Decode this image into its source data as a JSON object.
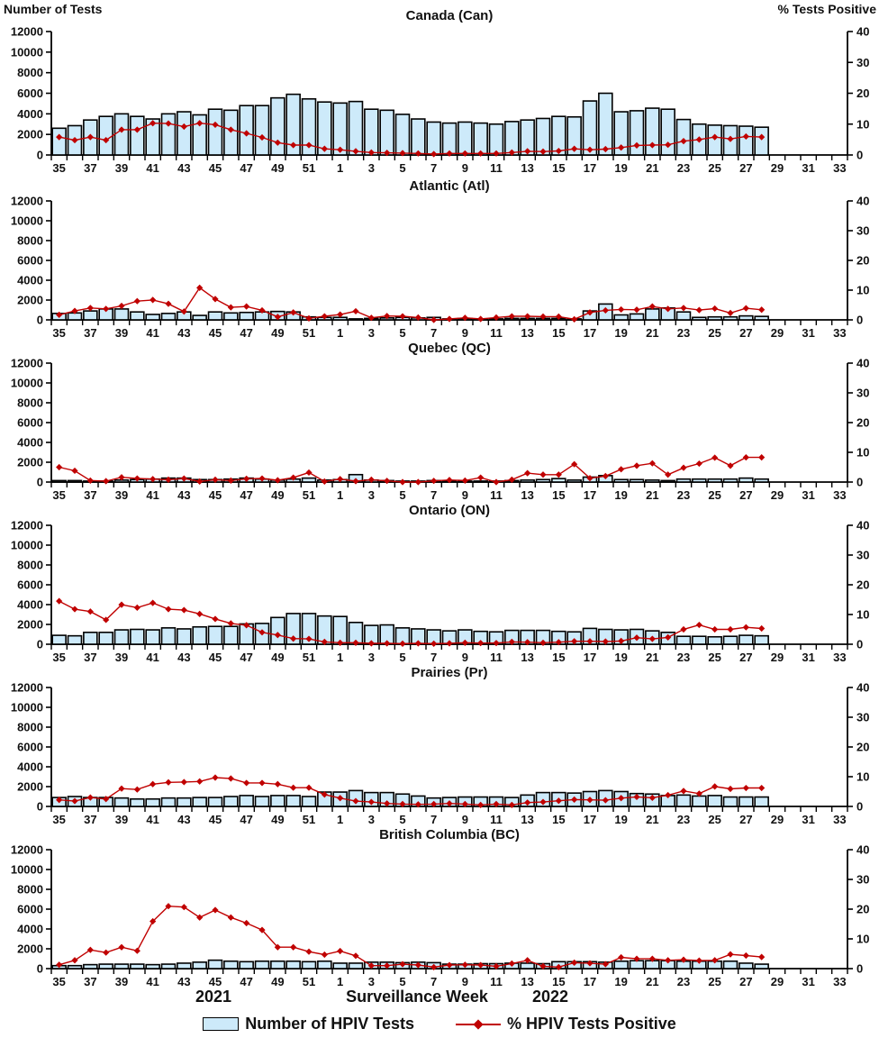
{
  "chart_data": {
    "type": "bar",
    "subtype": "combo-bar-line-multipanel",
    "xlabel": "Surveillance Week",
    "years": {
      "left": "2021",
      "right": "2022"
    },
    "legend": {
      "bars": "Number of HPIV Tests",
      "line": "% HPIV Tests Positive"
    },
    "left_axis": {
      "label": "Number of Tests",
      "min": 0,
      "max": 12000,
      "step": 2000
    },
    "right_axis": {
      "label": "% Tests Positive",
      "min": 0,
      "max": 40,
      "step": 10
    },
    "categories": [
      35,
      36,
      37,
      38,
      39,
      40,
      41,
      42,
      43,
      44,
      45,
      46,
      47,
      48,
      49,
      50,
      51,
      52,
      1,
      2,
      3,
      4,
      5,
      6,
      7,
      8,
      9,
      10,
      11,
      12,
      13,
      14,
      15,
      16,
      17,
      18,
      19,
      20,
      21,
      22,
      23,
      24,
      25,
      26,
      27,
      28,
      29,
      30,
      31,
      32,
      33
    ],
    "tick_label_weeks": [
      35,
      37,
      39,
      41,
      43,
      45,
      47,
      49,
      51,
      1,
      3,
      5,
      7,
      9,
      11,
      13,
      15,
      17,
      19,
      21,
      23,
      25,
      27,
      29,
      31,
      33
    ],
    "data_week_count": 46,
    "panels": [
      {
        "title": "Canada (Can)",
        "tests": [
          2600,
          2850,
          3400,
          3750,
          4000,
          3750,
          3500,
          4000,
          4200,
          3900,
          4450,
          4350,
          4800,
          4800,
          5550,
          5900,
          5450,
          5150,
          5050,
          5200,
          4450,
          4350,
          3950,
          3500,
          3200,
          3100,
          3200,
          3100,
          3000,
          3250,
          3400,
          3550,
          3750,
          3700,
          5250,
          6000,
          4200,
          4300,
          4550,
          4450,
          3450,
          3000,
          2900,
          2850,
          2800,
          2700
        ],
        "pct_positive": [
          5.8,
          4.8,
          5.8,
          4.8,
          8.2,
          8.2,
          10.3,
          10.2,
          9.2,
          10.3,
          9.8,
          8.2,
          7,
          5.7,
          4,
          3.2,
          3.2,
          2,
          1.7,
          1.2,
          0.8,
          0.7,
          0.6,
          0.5,
          0.3,
          0.5,
          0.5,
          0.5,
          0.5,
          0.8,
          1.2,
          1.1,
          1.3,
          2,
          1.7,
          1.9,
          2.4,
          3.1,
          3.2,
          3.3,
          4.5,
          5,
          5.8,
          5.2,
          6,
          5.8
        ]
      },
      {
        "title": "Atlantic (Atl)",
        "tests": [
          650,
          700,
          900,
          1100,
          1100,
          800,
          550,
          650,
          800,
          450,
          800,
          700,
          750,
          800,
          850,
          800,
          300,
          250,
          250,
          100,
          150,
          200,
          250,
          200,
          250,
          100,
          150,
          100,
          100,
          150,
          150,
          150,
          150,
          100,
          900,
          1600,
          500,
          600,
          1100,
          1200,
          800,
          250,
          300,
          300,
          400,
          350
        ],
        "pct_positive": [
          1.7,
          3,
          4,
          3.7,
          4.7,
          6.3,
          6.7,
          5.4,
          2.8,
          10.8,
          7,
          4.2,
          4.5,
          3.2,
          1,
          2.5,
          0.5,
          1.2,
          1.8,
          2.9,
          0.7,
          1.3,
          1.2,
          0.8,
          0,
          0.3,
          0.7,
          0.3,
          0.8,
          1.2,
          1.2,
          1.1,
          1.1,
          0.2,
          2.5,
          3.2,
          3.5,
          3.4,
          4.5,
          3.7,
          4,
          3.3,
          3.8,
          2.3,
          3.9,
          3.4
        ]
      },
      {
        "title": "Quebec (QC)",
        "tests": [
          150,
          150,
          100,
          100,
          200,
          250,
          300,
          400,
          400,
          250,
          250,
          300,
          400,
          300,
          200,
          300,
          400,
          200,
          250,
          750,
          200,
          150,
          100,
          100,
          150,
          100,
          100,
          100,
          100,
          150,
          200,
          250,
          350,
          200,
          500,
          650,
          250,
          250,
          200,
          150,
          300,
          300,
          300,
          300,
          400,
          300
        ],
        "pct_positive": [
          5,
          3.8,
          0.5,
          0.3,
          1.6,
          1.2,
          1,
          0.8,
          1.2,
          0.2,
          0.8,
          0.5,
          1.1,
          1.2,
          0.6,
          1.5,
          3.2,
          0.2,
          1,
          0.3,
          0.8,
          0.4,
          0,
          0,
          0.4,
          0.7,
          0.5,
          1.5,
          0,
          0.8,
          3,
          2.5,
          2.5,
          6,
          1.3,
          2,
          4.3,
          5.5,
          6.3,
          2.5,
          4.8,
          6.2,
          8.2,
          5.5,
          8.3,
          8.3
        ]
      },
      {
        "title": "Ontario (ON)",
        "tests": [
          900,
          850,
          1200,
          1200,
          1450,
          1500,
          1450,
          1650,
          1550,
          1750,
          1800,
          1800,
          2050,
          2100,
          2700,
          3100,
          3100,
          2850,
          2800,
          2200,
          1900,
          1950,
          1650,
          1550,
          1450,
          1350,
          1450,
          1300,
          1250,
          1400,
          1400,
          1400,
          1300,
          1250,
          1600,
          1500,
          1450,
          1500,
          1350,
          1200,
          800,
          800,
          750,
          800,
          900,
          850
        ],
        "pct_positive": [
          14.5,
          11.8,
          11,
          8.2,
          13.3,
          12.3,
          13.9,
          11.8,
          11.5,
          10.2,
          8.5,
          7,
          6.4,
          4,
          3.1,
          1.9,
          1.8,
          0.8,
          0.5,
          0.5,
          0.3,
          0.3,
          0.2,
          0.3,
          0.2,
          0.3,
          0.5,
          0.4,
          0.4,
          0.8,
          0.7,
          0.5,
          0.7,
          1,
          1,
          0.9,
          1.1,
          2.2,
          1.8,
          2.3,
          5,
          6.5,
          5,
          5,
          5.7,
          5.3
        ]
      },
      {
        "title": "Prairies (Pr)",
        "tests": [
          900,
          1000,
          900,
          900,
          850,
          750,
          750,
          850,
          850,
          900,
          900,
          1000,
          1100,
          1000,
          1100,
          1100,
          1000,
          1450,
          1450,
          1600,
          1400,
          1400,
          1250,
          1050,
          850,
          900,
          950,
          950,
          950,
          900,
          1150,
          1400,
          1400,
          1350,
          1500,
          1600,
          1500,
          1300,
          1250,
          1100,
          1150,
          1050,
          1100,
          950,
          950,
          950
        ],
        "pct_positive": [
          2.2,
          1.8,
          3,
          2.5,
          6,
          5.7,
          7.5,
          8.1,
          8.2,
          8.4,
          9.7,
          9.4,
          7.9,
          7.9,
          7.5,
          6.3,
          6.3,
          4,
          2.8,
          1.8,
          1.5,
          1,
          0.8,
          0.7,
          0.8,
          1,
          0.8,
          0.5,
          0.8,
          0.5,
          1.3,
          1.5,
          1.9,
          2.3,
          2.2,
          2.1,
          2.8,
          3.2,
          2.9,
          3.8,
          5.2,
          4.3,
          6.7,
          5.9,
          6.2,
          6.2
        ]
      },
      {
        "title": "British Columbia (BC)",
        "tests": [
          300,
          300,
          400,
          450,
          450,
          450,
          400,
          450,
          550,
          650,
          850,
          750,
          700,
          750,
          750,
          750,
          700,
          750,
          550,
          550,
          650,
          650,
          600,
          650,
          600,
          450,
          450,
          500,
          500,
          550,
          550,
          500,
          700,
          700,
          700,
          650,
          750,
          800,
          800,
          800,
          750,
          750,
          750,
          750,
          550,
          450
        ],
        "pct_positive": [
          1.3,
          2.8,
          6.3,
          5.4,
          7.2,
          6,
          15.9,
          21,
          20.7,
          17.2,
          19.7,
          17.2,
          15.3,
          13,
          7.2,
          7.2,
          5.7,
          4.7,
          5.9,
          4.3,
          1,
          1,
          1.5,
          1.2,
          0.5,
          1.2,
          1.3,
          1.2,
          0.8,
          1.7,
          2.8,
          0.8,
          0.5,
          2,
          1.8,
          1.5,
          3.8,
          3.3,
          3.3,
          2.8,
          3,
          2.7,
          2.8,
          4.8,
          4.4,
          3.9
        ]
      }
    ]
  },
  "colors": {
    "bar_fill": "#CDEAFA",
    "bar_stroke": "#000000",
    "line": "#C00000",
    "axis": "#000000",
    "text": "#111111"
  }
}
